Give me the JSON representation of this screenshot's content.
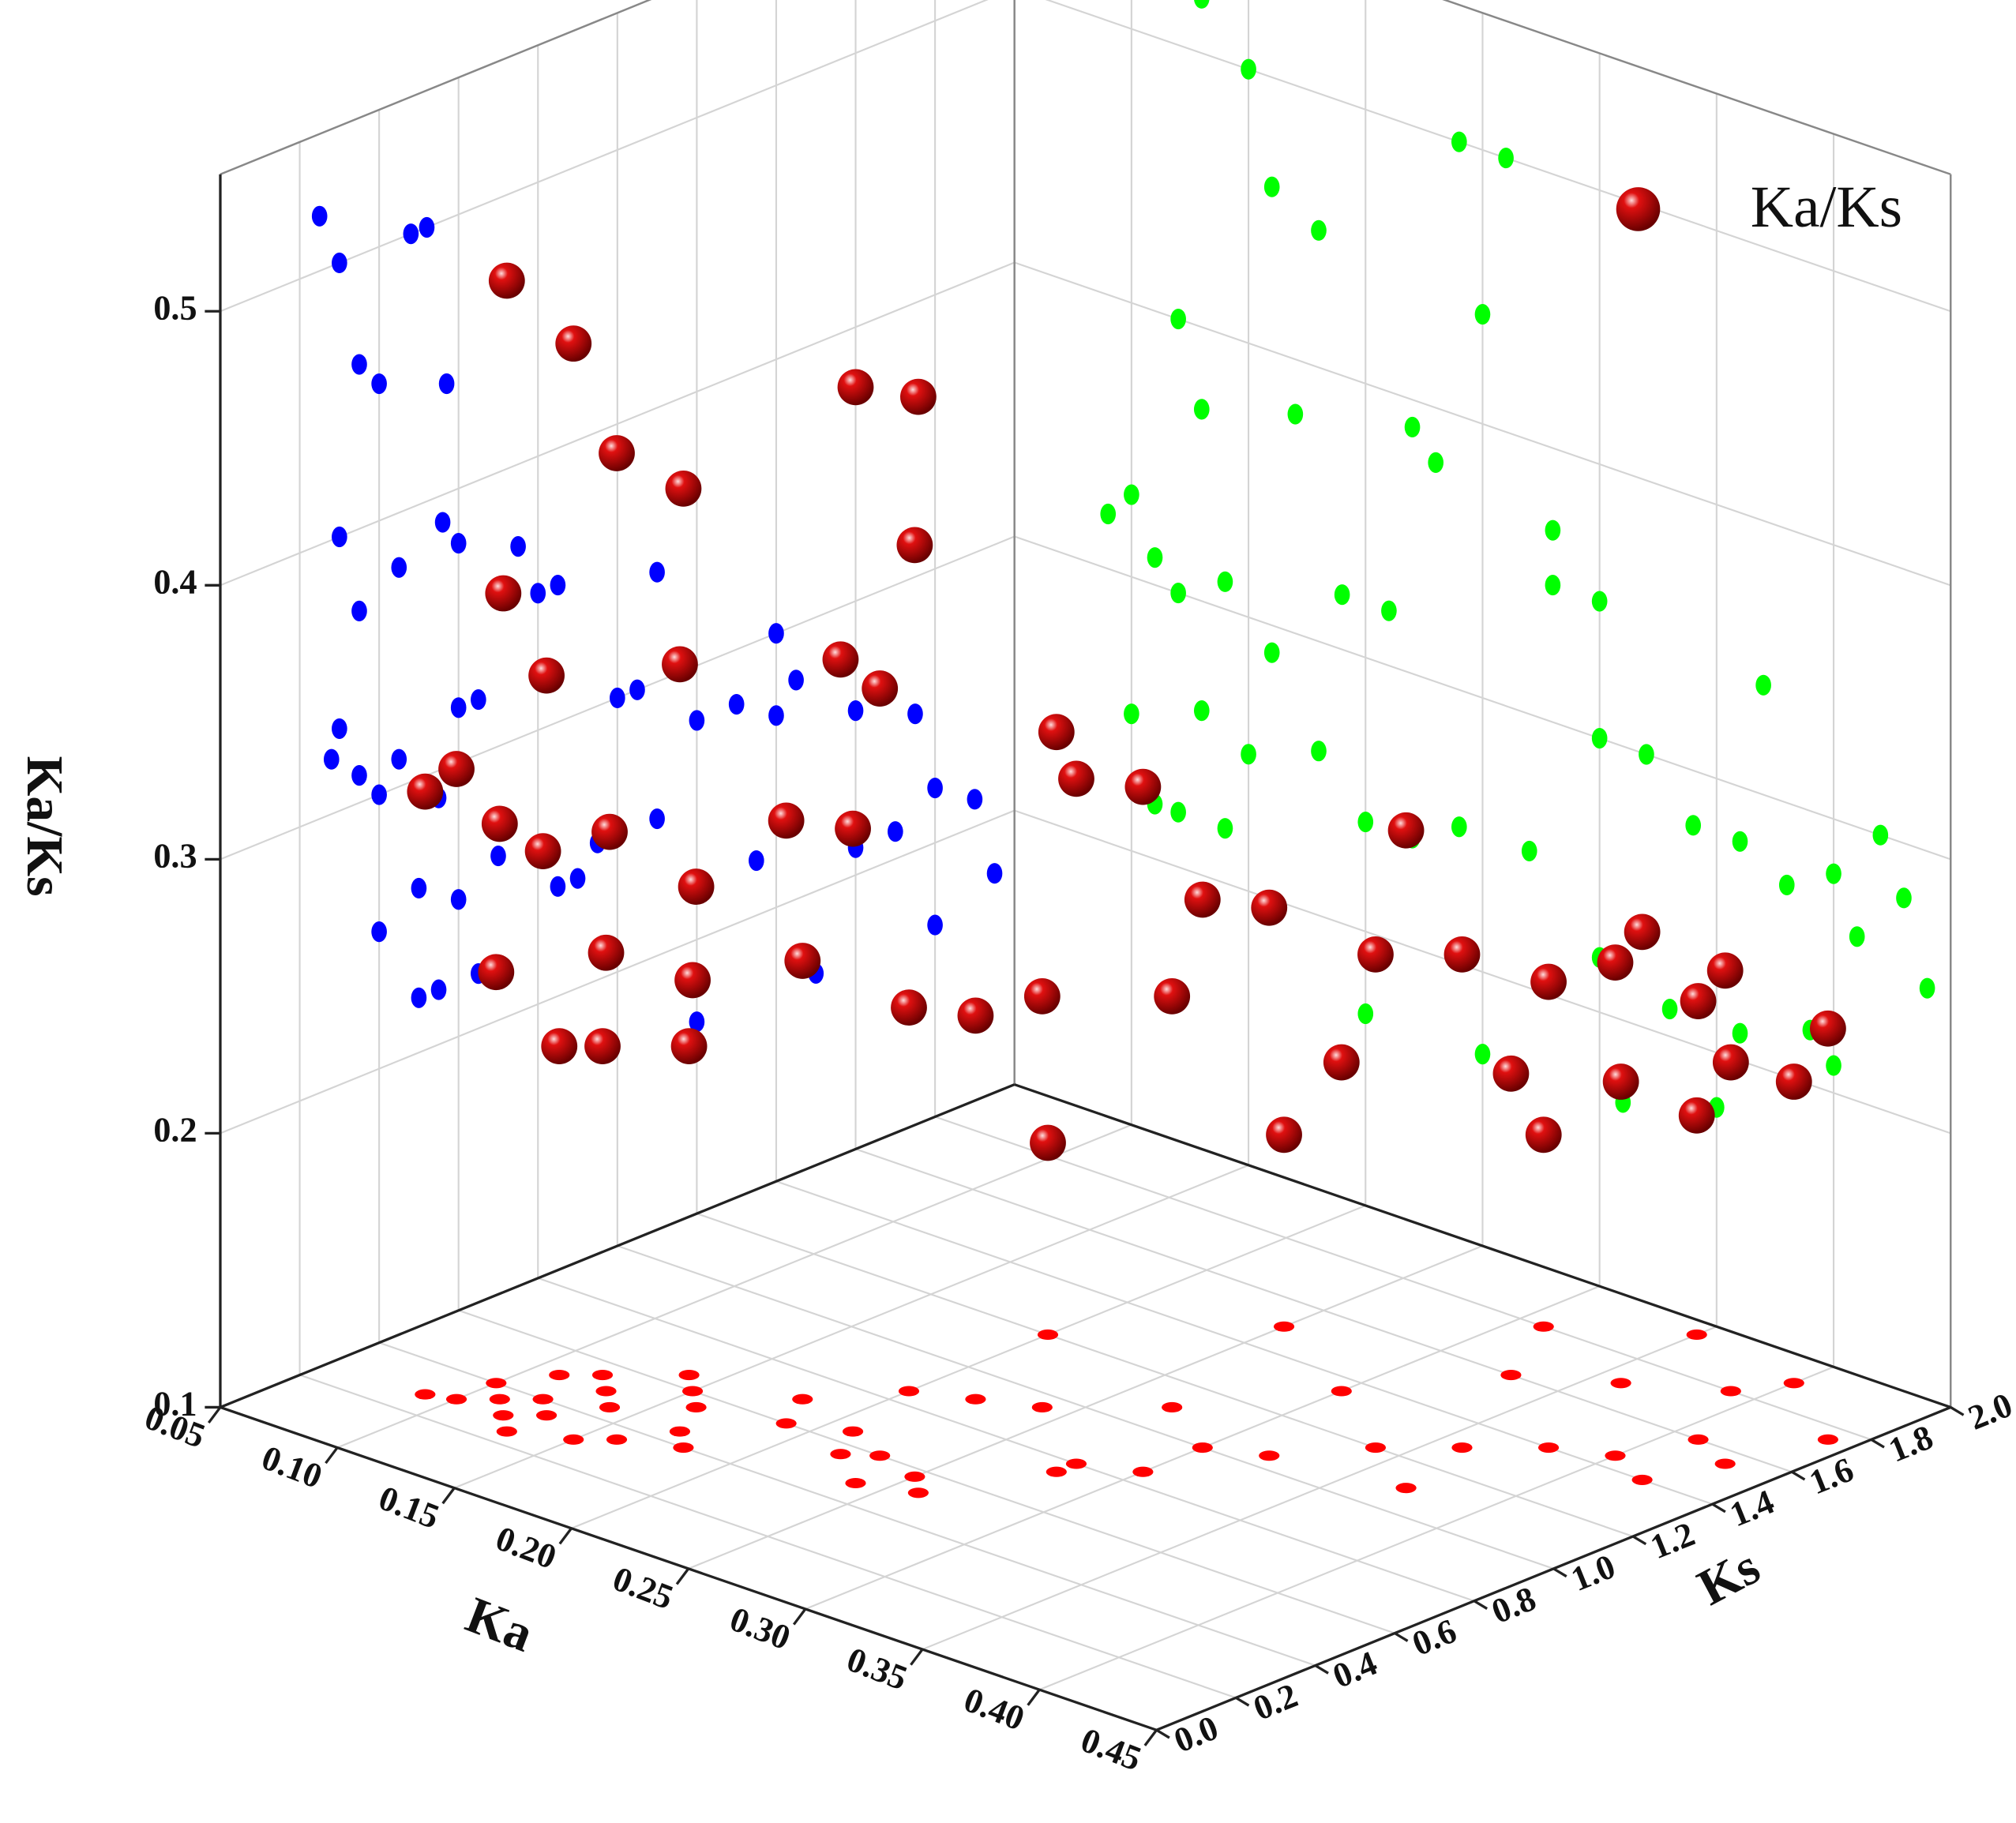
{
  "chart_data": {
    "type": "scatter3d",
    "xlabel": "Ka",
    "ylabel": "Ks",
    "zlabel": "Ka/Ks",
    "xlim": [
      0.05,
      0.45
    ],
    "ylim": [
      0,
      2
    ],
    "zlim": [
      0.1,
      0.55
    ],
    "xticks": [
      {
        "value": 0.05,
        "label": "0.05"
      },
      {
        "value": 0.1,
        "label": "0.10"
      },
      {
        "value": 0.15,
        "label": "0.15"
      },
      {
        "value": 0.2,
        "label": "0.20"
      },
      {
        "value": 0.25,
        "label": "0.25"
      },
      {
        "value": 0.3,
        "label": "0.30"
      },
      {
        "value": 0.35,
        "label": "0.35"
      },
      {
        "value": 0.4,
        "label": "0.40"
      },
      {
        "value": 0.45,
        "label": "0.45"
      }
    ],
    "yticks": [
      {
        "value": 0,
        "label": "0.0"
      },
      0.2,
      0.4,
      0.6,
      0.8,
      {
        "value": 1,
        "label": "1.0"
      },
      1.2,
      1.4,
      1.6,
      1.8,
      {
        "value": 2,
        "label": "2.0"
      }
    ],
    "zticks": [
      0.1,
      0.2,
      0.3,
      0.4,
      0.5
    ],
    "grid": true,
    "legend": "top-right",
    "projection_colors": {
      "ks_wall": "#0000ff",
      "ka_wall": "#00ff00",
      "floor": "#ff0000"
    },
    "series": [
      {
        "name": "Ka/Ks",
        "color": "#c40000",
        "x": [
          0.1,
          0.11,
          0.12,
          0.09,
          0.13,
          0.1,
          0.12,
          0.11,
          0.14,
          0.13,
          0.15,
          0.16,
          0.14,
          0.17,
          0.18,
          0.19,
          0.2,
          0.21,
          0.22,
          0.12,
          0.13,
          0.15,
          0.16,
          0.24,
          0.26,
          0.25,
          0.23,
          0.22,
          0.28,
          0.3,
          0.32,
          0.34,
          0.36,
          0.38,
          0.4,
          0.42,
          0.27,
          0.3,
          0.33,
          0.36,
          0.4,
          0.44,
          0.41,
          0.39,
          0.35,
          0.43,
          0.2,
          0.25,
          0.3,
          0.18,
          0.28,
          0.31,
          0.37,
          0.24
        ],
        "y": [
          0.3,
          0.35,
          0.4,
          0.28,
          0.5,
          0.4,
          0.55,
          0.5,
          0.45,
          0.35,
          0.6,
          0.55,
          0.65,
          0.45,
          0.7,
          0.6,
          0.85,
          0.65,
          0.9,
          0.3,
          0.25,
          0.3,
          0.35,
          0.48,
          0.52,
          0.57,
          0.6,
          0.56,
          0.8,
          0.85,
          1.05,
          1.2,
          1.3,
          1.4,
          1.45,
          1.4,
          1.1,
          1.35,
          1.6,
          1.7,
          1.9,
          1.75,
          1.6,
          1.8,
          1.95,
          1.55,
          1.2,
          1.5,
          1.0,
          0.4,
          0.75,
          1.8,
          1.1,
          0.95
        ],
        "z": [
          0.33,
          0.31,
          0.3,
          0.32,
          0.26,
          0.25,
          0.22,
          0.22,
          0.31,
          0.37,
          0.25,
          0.29,
          0.22,
          0.38,
          0.26,
          0.32,
          0.24,
          0.32,
          0.24,
          0.4,
          0.52,
          0.5,
          0.46,
          0.5,
          0.5,
          0.44,
          0.38,
          0.39,
          0.35,
          0.35,
          0.3,
          0.28,
          0.28,
          0.27,
          0.28,
          0.3,
          0.25,
          0.22,
          0.21,
          0.21,
          0.21,
          0.25,
          0.26,
          0.22,
          0.18,
          0.28,
          0.17,
          0.17,
          0.3,
          0.45,
          0.37,
          0.17,
          0.34,
          0.25
        ]
      }
    ]
  }
}
